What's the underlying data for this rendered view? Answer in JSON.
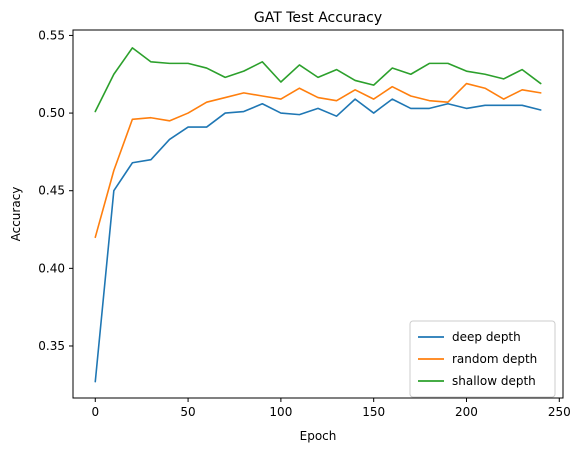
{
  "chart_data": {
    "type": "line",
    "title": "GAT Test Accuracy",
    "xlabel": "Epoch",
    "ylabel": "Accuracy",
    "xlim": [
      -12,
      252
    ],
    "ylim": [
      0.3165,
      0.5535
    ],
    "xticks": [
      0,
      50,
      100,
      150,
      200,
      250
    ],
    "xtick_labels": [
      "0",
      "50",
      "100",
      "150",
      "200",
      "250"
    ],
    "yticks": [
      0.35,
      0.4,
      0.45,
      0.5,
      0.55
    ],
    "ytick_labels": [
      "0.35",
      "0.40",
      "0.45",
      "0.50",
      "0.55"
    ],
    "grid": false,
    "legend_position": "lower-right",
    "x": [
      0,
      10,
      20,
      30,
      40,
      50,
      60,
      70,
      80,
      90,
      100,
      110,
      120,
      130,
      140,
      150,
      160,
      170,
      180,
      190,
      200,
      210,
      220,
      230,
      240
    ],
    "series": [
      {
        "name": "deep depth",
        "color": "#1f77b4",
        "values": [
          0.327,
          0.45,
          0.468,
          0.47,
          0.483,
          0.491,
          0.491,
          0.5,
          0.501,
          0.506,
          0.5,
          0.499,
          0.503,
          0.498,
          0.509,
          0.5,
          0.509,
          0.503,
          0.503,
          0.506,
          0.503,
          0.505,
          0.505,
          0.505,
          0.502
        ]
      },
      {
        "name": "random depth",
        "color": "#ff7f0e",
        "values": [
          0.42,
          0.463,
          0.496,
          0.497,
          0.495,
          0.5,
          0.507,
          0.51,
          0.513,
          0.511,
          0.509,
          0.516,
          0.51,
          0.508,
          0.515,
          0.509,
          0.517,
          0.511,
          0.508,
          0.507,
          0.519,
          0.516,
          0.509,
          0.515,
          0.513
        ]
      },
      {
        "name": "shallow depth",
        "color": "#2ca02c",
        "values": [
          0.501,
          0.525,
          0.542,
          0.533,
          0.532,
          0.532,
          0.529,
          0.523,
          0.527,
          0.533,
          0.52,
          0.531,
          0.523,
          0.528,
          0.521,
          0.518,
          0.529,
          0.525,
          0.532,
          0.532,
          0.527,
          0.525,
          0.522,
          0.528,
          0.519
        ]
      }
    ]
  }
}
